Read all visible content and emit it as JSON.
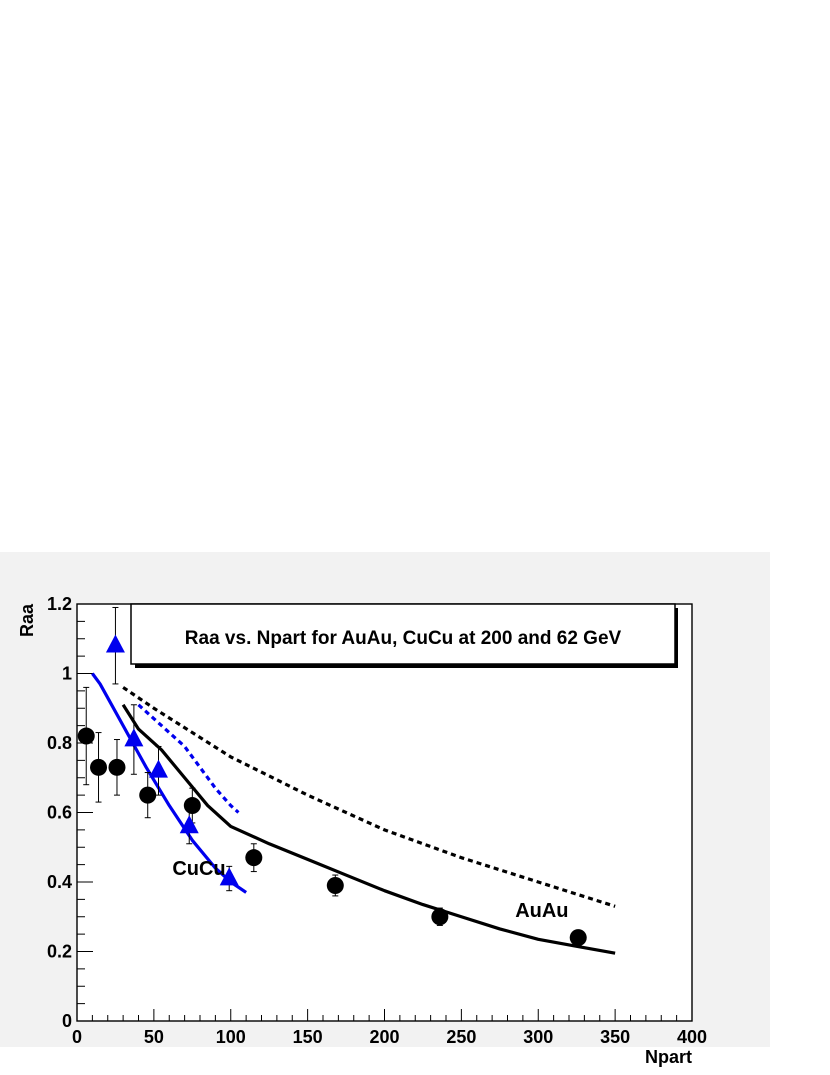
{
  "chart_data": {
    "type": "scatter",
    "title": "Raa vs. Npart for AuAu, CuCu at 200 and 62 GeV",
    "xlabel": "Npart",
    "ylabel": "Raa",
    "xlim": [
      0,
      400
    ],
    "ylim": [
      0,
      1.2
    ],
    "x_ticks": [
      0,
      50,
      100,
      150,
      200,
      250,
      300,
      350,
      400
    ],
    "y_ticks": [
      0,
      0.2,
      0.4,
      0.6,
      0.8,
      1,
      1.2
    ],
    "x_tick_labels": [
      "0",
      "50",
      "100",
      "150",
      "200",
      "250",
      "300",
      "350",
      "400"
    ],
    "y_tick_labels": [
      "0",
      "0.2",
      "0.4",
      "0.6",
      "0.8",
      "1",
      "1.2"
    ],
    "grid": false,
    "annotations": [
      {
        "text": "CuCu",
        "x": 62,
        "y": 0.42,
        "color": "#0000ee"
      },
      {
        "text": "AuAu",
        "x": 285,
        "y": 0.3,
        "color": "#000000"
      }
    ],
    "series": [
      {
        "kind": "points",
        "marker": "circle",
        "color": "#000000",
        "points": [
          {
            "x": 6,
            "y": 0.82,
            "err": 0.14
          },
          {
            "x": 14,
            "y": 0.73,
            "err": 0.1
          },
          {
            "x": 26,
            "y": 0.73,
            "err": 0.08
          },
          {
            "x": 46,
            "y": 0.65,
            "err": 0.065
          },
          {
            "x": 75,
            "y": 0.62,
            "err": 0.05
          },
          {
            "x": 115,
            "y": 0.47,
            "err": 0.04
          },
          {
            "x": 168,
            "y": 0.39,
            "err": 0.03
          },
          {
            "x": 236,
            "y": 0.3,
            "err": 0.025
          },
          {
            "x": 326,
            "y": 0.24,
            "err": 0.02
          }
        ]
      },
      {
        "kind": "points",
        "marker": "triangle",
        "color": "#0000ee",
        "points": [
          {
            "x": 25,
            "y": 1.08,
            "err": 0.11
          },
          {
            "x": 37,
            "y": 0.81,
            "err": 0.1
          },
          {
            "x": 53,
            "y": 0.72,
            "err": 0.07
          },
          {
            "x": 73,
            "y": 0.56,
            "err": 0.05
          },
          {
            "x": 99,
            "y": 0.41,
            "err": 0.035
          }
        ]
      },
      {
        "kind": "line",
        "style": "solid",
        "color": "#000000",
        "x": [
          30,
          40,
          55,
          70,
          85,
          100,
          125,
          150,
          175,
          200,
          225,
          250,
          275,
          300,
          325,
          350
        ],
        "y": [
          0.91,
          0.84,
          0.78,
          0.7,
          0.62,
          0.56,
          0.51,
          0.465,
          0.42,
          0.375,
          0.335,
          0.3,
          0.265,
          0.235,
          0.215,
          0.195
        ]
      },
      {
        "kind": "line",
        "style": "dotted",
        "color": "#000000",
        "x": [
          30,
          50,
          75,
          100,
          150,
          200,
          250,
          300,
          350
        ],
        "y": [
          0.96,
          0.9,
          0.83,
          0.76,
          0.65,
          0.55,
          0.47,
          0.4,
          0.33
        ]
      },
      {
        "kind": "line",
        "style": "solid",
        "color": "#0000ee",
        "x": [
          10,
          15,
          20,
          30,
          45,
          60,
          75,
          90,
          100,
          110
        ],
        "y": [
          1.0,
          0.97,
          0.93,
          0.85,
          0.73,
          0.62,
          0.52,
          0.44,
          0.4,
          0.37
        ]
      },
      {
        "kind": "line",
        "style": "dotted",
        "color": "#0000ee",
        "x": [
          40,
          50,
          60,
          70,
          80,
          90,
          100,
          105
        ],
        "y": [
          0.91,
          0.87,
          0.83,
          0.79,
          0.73,
          0.67,
          0.62,
          0.6
        ]
      }
    ]
  }
}
